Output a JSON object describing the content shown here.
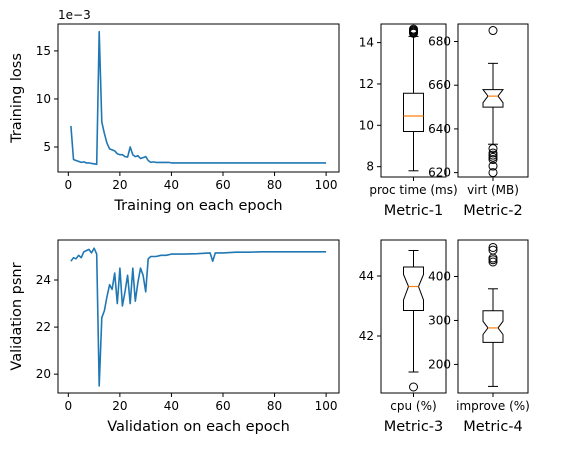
{
  "colors": {
    "line": "#1f77b4",
    "median": "#ff7f0e",
    "axis": "#000000"
  },
  "chart_data": [
    {
      "type": "line",
      "xlabel": "Training on each epoch",
      "ylabel": "Training loss",
      "offset_label": "1e−3",
      "xlim": [
        -4,
        105
      ],
      "ylim": [
        2.4,
        17.8
      ],
      "xticks": [
        0,
        20,
        40,
        60,
        80,
        100
      ],
      "yticks": [
        5,
        10,
        15
      ],
      "series": [
        {
          "x": [
            1,
            2,
            3,
            4,
            5,
            6,
            7,
            8,
            9,
            10,
            11,
            12,
            13,
            14,
            15,
            16,
            17,
            18,
            19,
            20,
            21,
            22,
            23,
            24,
            25,
            26,
            27,
            28,
            29,
            30,
            31,
            32,
            33,
            34,
            35,
            36,
            37,
            38,
            39,
            40,
            50,
            60,
            70,
            80,
            90,
            100
          ],
          "y": [
            7.2,
            3.7,
            3.6,
            3.5,
            3.4,
            3.45,
            3.35,
            3.35,
            3.3,
            3.25,
            3.2,
            17.0,
            7.6,
            6.4,
            5.4,
            4.8,
            4.7,
            4.6,
            4.3,
            4.2,
            4.2,
            4.0,
            3.95,
            5.0,
            4.2,
            4.0,
            4.1,
            3.8,
            3.9,
            4.0,
            3.6,
            3.4,
            3.45,
            3.4,
            3.4,
            3.4,
            3.4,
            3.4,
            3.4,
            3.35,
            3.35,
            3.35,
            3.35,
            3.35,
            3.35,
            3.35
          ]
        }
      ]
    },
    {
      "type": "line",
      "xlabel": "Validation on each epoch",
      "ylabel": "Validation psnr",
      "xlim": [
        -4,
        105
      ],
      "ylim": [
        19.2,
        25.7
      ],
      "xticks": [
        0,
        20,
        40,
        60,
        80,
        100
      ],
      "yticks": [
        20,
        22,
        24
      ],
      "series": [
        {
          "x": [
            1,
            2,
            3,
            4,
            5,
            6,
            7,
            8,
            9,
            10,
            11,
            12,
            13,
            14,
            15,
            16,
            17,
            18,
            19,
            20,
            21,
            22,
            23,
            24,
            25,
            26,
            27,
            28,
            29,
            30,
            31,
            32,
            34,
            36,
            38,
            40,
            45,
            50,
            55,
            56,
            57,
            60,
            65,
            70,
            75,
            80,
            85,
            90,
            95,
            100
          ],
          "y": [
            24.8,
            24.95,
            24.9,
            25.05,
            24.95,
            25.2,
            25.25,
            25.3,
            25.15,
            25.35,
            25.1,
            19.5,
            22.4,
            22.7,
            23.3,
            23.8,
            23.6,
            24.3,
            23.0,
            24.5,
            22.9,
            23.5,
            24.2,
            23.0,
            24.5,
            23.1,
            23.9,
            24.5,
            24.2,
            23.5,
            24.9,
            25.0,
            25.0,
            25.05,
            25.05,
            25.1,
            25.1,
            25.12,
            25.15,
            24.8,
            25.15,
            25.15,
            25.18,
            25.18,
            25.2,
            25.2,
            25.2,
            25.2,
            25.2,
            25.2
          ]
        }
      ]
    },
    {
      "type": "box",
      "title": "Metric-1",
      "category": "proc time (ms)",
      "ylim": [
        7.5,
        14.9
      ],
      "yticks": [
        8,
        10,
        12,
        14
      ],
      "whisker_low": 7.8,
      "q1": 9.7,
      "median": 10.45,
      "q3": 11.55,
      "whisker_high": 14.3,
      "notch": false,
      "outliers": [
        14.45,
        14.5,
        14.55,
        14.6,
        14.65
      ]
    },
    {
      "type": "box",
      "title": "Metric-2",
      "category": "virt (MB)",
      "ylim": [
        618,
        688
      ],
      "yticks": [
        620,
        640,
        660,
        680
      ],
      "whisker_low": 633,
      "q1": 650,
      "median": 655,
      "q3": 658,
      "whisker_high": 670,
      "notch": true,
      "notch_low": 652,
      "notch_high": 658,
      "outliers": [
        685,
        631,
        629,
        628,
        627,
        626,
        623,
        620
      ]
    },
    {
      "type": "box",
      "title": "Metric-3",
      "category": "cpu (%)",
      "ylim": [
        40.1,
        45.2
      ],
      "yticks": [
        42,
        44
      ],
      "whisker_low": 40.8,
      "q1": 42.85,
      "median": 43.65,
      "q3": 44.3,
      "whisker_high": 44.85,
      "notch": true,
      "notch_low": 43.2,
      "notch_high": 44.05,
      "outliers": [
        40.3
      ]
    },
    {
      "type": "box",
      "title": "Metric-4",
      "category": "improve (%)",
      "ylim": [
        135,
        483
      ],
      "yticks": [
        200,
        300,
        400
      ],
      "whisker_low": 150,
      "q1": 250,
      "median": 283,
      "q3": 322,
      "whisker_high": 372,
      "notch": true,
      "notch_low": 268,
      "notch_high": 298,
      "outliers": [
        433,
        438,
        442,
        460,
        466
      ]
    }
  ]
}
